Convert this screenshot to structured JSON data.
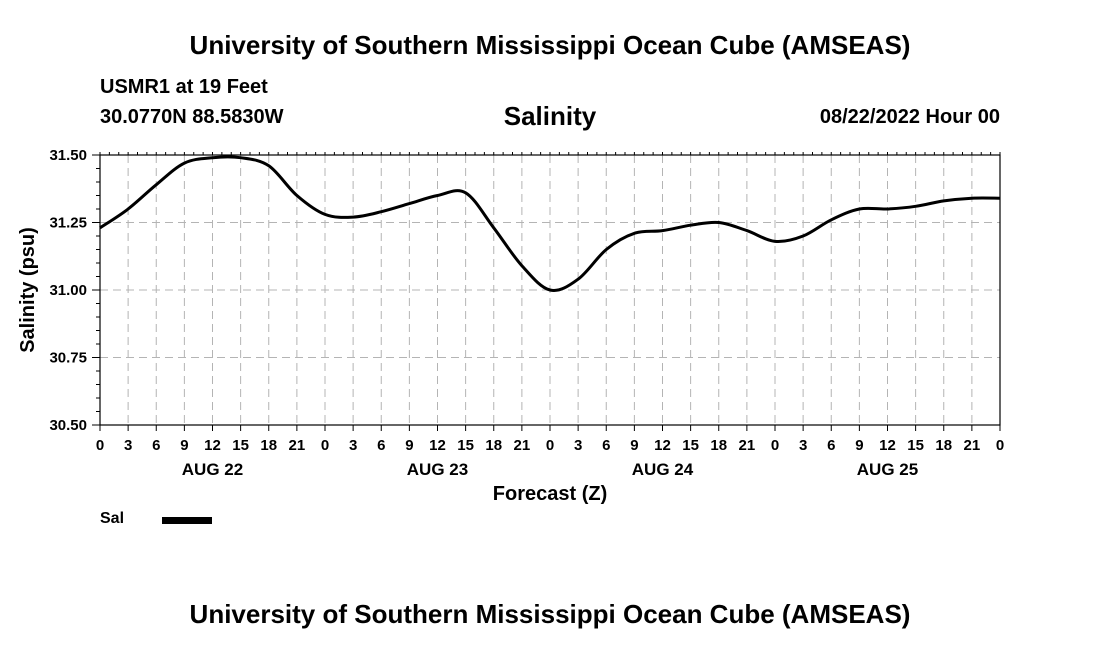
{
  "header": {
    "title": "University of Southern Mississippi Ocean Cube (AMSEAS)",
    "station": "USMR1 at 19 Feet",
    "coords": "30.0770N  88.5830W",
    "run_time": "08/22/2022 Hour 00"
  },
  "footer": {
    "title": "University of Southern Mississippi Ocean Cube (AMSEAS)"
  },
  "legend": {
    "label": "Sal",
    "color": "#000000"
  },
  "chart_data": {
    "type": "line",
    "title": "Salinity",
    "xlabel": "Forecast (Z)",
    "ylabel": "Salinity (psu)",
    "x_unit": "forecast hour",
    "xlim": [
      0,
      96
    ],
    "ylim": [
      30.5,
      31.5
    ],
    "yticks": [
      30.5,
      30.75,
      31.0,
      31.25,
      31.5
    ],
    "ytick_labels": [
      "30.50",
      "30.75",
      "31.00",
      "31.25",
      "31.50"
    ],
    "xticks": [
      0,
      3,
      6,
      9,
      12,
      15,
      18,
      21,
      24,
      27,
      30,
      33,
      36,
      39,
      42,
      45,
      48,
      51,
      54,
      57,
      60,
      63,
      66,
      69,
      72,
      75,
      78,
      81,
      84,
      87,
      90,
      93,
      96
    ],
    "xtick_labels": [
      "0",
      "3",
      "6",
      "9",
      "12",
      "15",
      "18",
      "21",
      "0",
      "3",
      "6",
      "9",
      "12",
      "15",
      "18",
      "21",
      "0",
      "3",
      "6",
      "9",
      "12",
      "15",
      "18",
      "21",
      "0",
      "3",
      "6",
      "9",
      "12",
      "15",
      "18",
      "21",
      "0"
    ],
    "day_labels": [
      {
        "text": "AUG 22",
        "x": 12
      },
      {
        "text": "AUG 23",
        "x": 36
      },
      {
        "text": "AUG 24",
        "x": 60
      },
      {
        "text": "AUG 25",
        "x": 84
      }
    ],
    "grid": true,
    "series": [
      {
        "name": "Sal",
        "x": [
          0,
          3,
          6,
          9,
          12,
          15,
          18,
          21,
          24,
          27,
          30,
          33,
          36,
          39,
          42,
          45,
          48,
          51,
          54,
          57,
          60,
          63,
          66,
          69,
          72,
          75,
          78,
          81,
          84,
          87,
          90,
          93,
          96
        ],
        "values": [
          31.23,
          31.3,
          31.39,
          31.47,
          31.49,
          31.49,
          31.46,
          31.35,
          31.28,
          31.27,
          31.29,
          31.32,
          31.35,
          31.36,
          31.23,
          31.09,
          31.0,
          31.04,
          31.15,
          31.21,
          31.22,
          31.24,
          31.25,
          31.22,
          31.18,
          31.2,
          31.26,
          31.3,
          31.3,
          31.31,
          31.33,
          31.34,
          31.34
        ]
      }
    ]
  }
}
